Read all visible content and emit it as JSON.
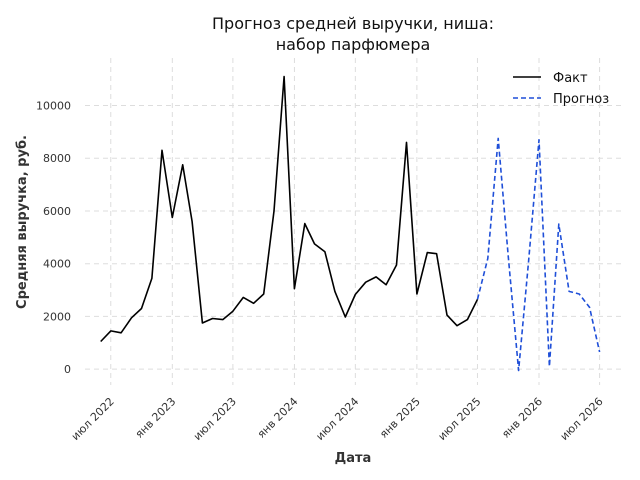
{
  "chart_data": {
    "type": "line",
    "title": [
      "Прогноз средней выручки, ниша:",
      "набор парфюмера"
    ],
    "xlabel": "Дата",
    "ylabel": "Средняя выручка, руб.",
    "ylim": [
      -600,
      11800
    ],
    "xlim": [
      "2022-04-15",
      "2026-09-15"
    ],
    "yticks": [
      0,
      2000,
      4000,
      6000,
      8000,
      10000
    ],
    "xticks": [
      {
        "date": "2022-07-01",
        "label": "июл 2022"
      },
      {
        "date": "2023-01-01",
        "label": "янв 2023"
      },
      {
        "date": "2023-07-01",
        "label": "июл 2023"
      },
      {
        "date": "2024-01-01",
        "label": "янв 2024"
      },
      {
        "date": "2024-07-01",
        "label": "июл 2024"
      },
      {
        "date": "2025-01-01",
        "label": "янв 2025"
      },
      {
        "date": "2025-07-01",
        "label": "июл 2025"
      },
      {
        "date": "2026-01-01",
        "label": "янв 2026"
      },
      {
        "date": "2026-07-01",
        "label": "июл 2026"
      }
    ],
    "grid": true,
    "legend_position": "top-right",
    "colors": {
      "fact": "#000000",
      "forecast": "#1f4fd8"
    },
    "series": [
      {
        "name": "Факт",
        "style": "solid",
        "points": [
          [
            "2022-06-01",
            1050
          ],
          [
            "2022-07-01",
            1450
          ],
          [
            "2022-08-01",
            1380
          ],
          [
            "2022-09-01",
            1950
          ],
          [
            "2022-10-01",
            2300
          ],
          [
            "2022-11-01",
            3450
          ],
          [
            "2022-12-01",
            8300
          ],
          [
            "2023-01-01",
            5750
          ],
          [
            "2023-02-01",
            7750
          ],
          [
            "2023-03-01",
            5600
          ],
          [
            "2023-04-01",
            1750
          ],
          [
            "2023-05-01",
            1920
          ],
          [
            "2023-06-01",
            1880
          ],
          [
            "2023-07-01",
            2200
          ],
          [
            "2023-08-01",
            2720
          ],
          [
            "2023-09-01",
            2500
          ],
          [
            "2023-10-01",
            2850
          ],
          [
            "2023-11-01",
            6000
          ],
          [
            "2023-12-01",
            11100
          ],
          [
            "2024-01-01",
            3050
          ],
          [
            "2024-02-01",
            5520
          ],
          [
            "2024-03-01",
            4750
          ],
          [
            "2024-04-01",
            4450
          ],
          [
            "2024-05-01",
            2950
          ],
          [
            "2024-06-01",
            1980
          ],
          [
            "2024-07-01",
            2830
          ],
          [
            "2024-08-01",
            3300
          ],
          [
            "2024-09-01",
            3500
          ],
          [
            "2024-10-01",
            3200
          ],
          [
            "2024-11-01",
            3950
          ],
          [
            "2024-12-01",
            8600
          ],
          [
            "2025-01-01",
            2850
          ],
          [
            "2025-02-01",
            4420
          ],
          [
            "2025-03-01",
            4380
          ],
          [
            "2025-04-01",
            2050
          ],
          [
            "2025-05-01",
            1650
          ],
          [
            "2025-06-01",
            1880
          ],
          [
            "2025-07-01",
            2650
          ]
        ]
      },
      {
        "name": "Прогноз",
        "style": "dashed",
        "points": [
          [
            "2025-07-01",
            2650
          ],
          [
            "2025-08-01",
            4200
          ],
          [
            "2025-09-01",
            8750
          ],
          [
            "2025-10-01",
            4300
          ],
          [
            "2025-11-01",
            -50
          ],
          [
            "2025-12-01",
            4100
          ],
          [
            "2026-01-01",
            8700
          ],
          [
            "2026-02-01",
            100
          ],
          [
            "2026-03-01",
            5500
          ],
          [
            "2026-04-01",
            2950
          ],
          [
            "2026-05-01",
            2850
          ],
          [
            "2026-06-01",
            2350
          ],
          [
            "2026-07-01",
            650
          ]
        ]
      }
    ]
  }
}
